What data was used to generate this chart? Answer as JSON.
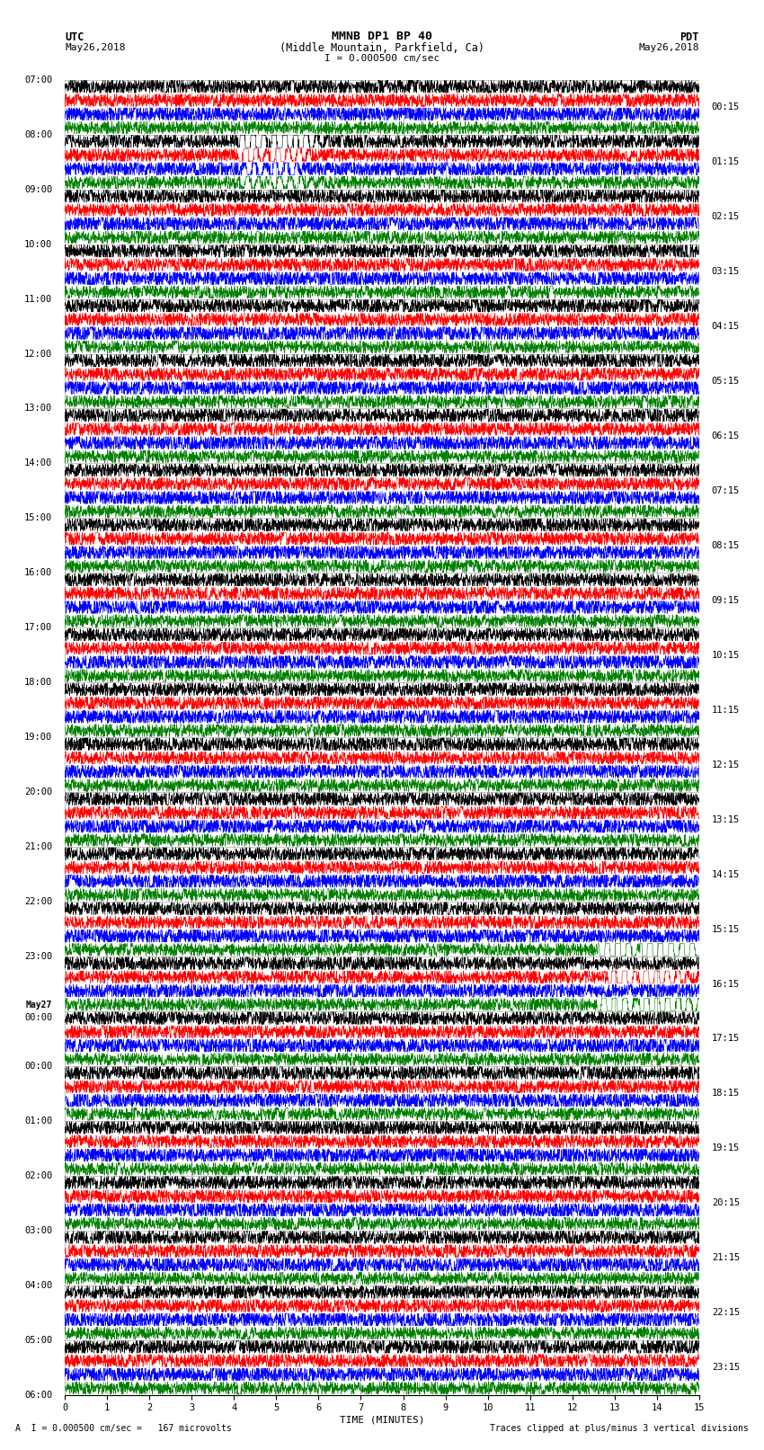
{
  "title_line1": "MMNB DP1 BP 40",
  "title_line2": "(Middle Mountain, Parkfield, Ca)",
  "scale_text": "I = 0.000500 cm/sec",
  "left_header": "UTC",
  "left_date": "May26,2018",
  "right_header": "PDT",
  "right_date": "May26,2018",
  "xlabel": "TIME (MINUTES)",
  "bottom_left": "A  I = 0.000500 cm/sec =   167 microvolts",
  "bottom_right": "Traces clipped at plus/minus 3 vertical divisions",
  "xlim": [
    0,
    15
  ],
  "left_times": [
    "07:00",
    "08:00",
    "09:00",
    "10:00",
    "11:00",
    "12:00",
    "13:00",
    "14:00",
    "15:00",
    "16:00",
    "17:00",
    "18:00",
    "19:00",
    "20:00",
    "21:00",
    "22:00",
    "23:00",
    "May27\n00:00",
    "01:00",
    "02:00",
    "03:00",
    "04:00",
    "05:00",
    "06:00"
  ],
  "right_times": [
    "00:15",
    "01:15",
    "02:15",
    "03:15",
    "04:15",
    "05:15",
    "06:15",
    "07:15",
    "08:15",
    "09:15",
    "10:15",
    "11:15",
    "12:15",
    "13:15",
    "14:15",
    "15:15",
    "16:15",
    "17:15",
    "18:15",
    "19:15",
    "20:15",
    "21:15",
    "22:15",
    "23:15"
  ],
  "trace_colors": [
    "black",
    "red",
    "blue",
    "green"
  ],
  "bg_color": "white",
  "n_rows": 24,
  "n_traces": 4,
  "seed": 42,
  "grid_color": "#888888",
  "title_fontsize": 9,
  "label_fontsize": 7.5,
  "axis_fontsize": 7.5
}
